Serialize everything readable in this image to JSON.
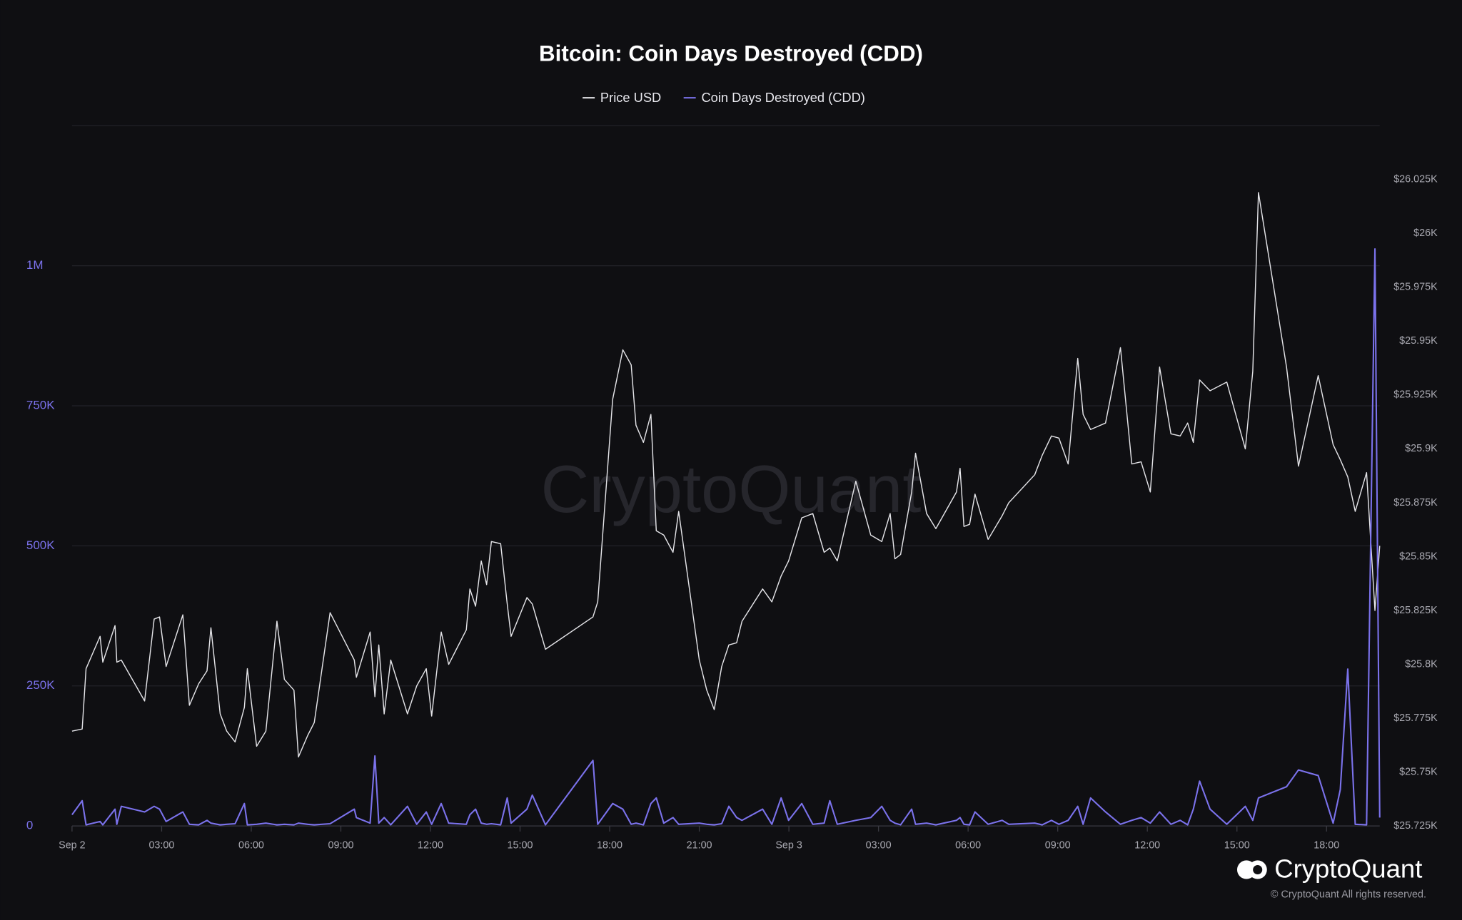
{
  "chart_data": {
    "type": "line",
    "title": "Bitcoin: Coin Days Destroyed (CDD)",
    "watermark": "CryptoQuant",
    "brand": "CryptoQuant",
    "copyright": "© CryptoQuant All rights reserved.",
    "x": [
      0,
      0.34,
      0.47,
      0.94,
      1.03,
      1.44,
      1.5,
      1.65,
      2.43,
      2.75,
      2.93,
      3.15,
      3.71,
      3.93,
      4.24,
      4.52,
      4.65,
      4.96,
      5.18,
      5.46,
      5.77,
      5.87,
      6.18,
      6.49,
      6.86,
      7.11,
      7.43,
      7.58,
      7.89,
      8.11,
      8.64,
      9.45,
      9.52,
      9.98,
      10.14,
      10.27,
      10.45,
      10.67,
      11.23,
      11.54,
      11.86,
      12.04,
      12.36,
      12.61,
      13.2,
      13.32,
      13.51,
      13.7,
      13.88,
      14.04,
      14.35,
      14.57,
      14.7,
      15.23,
      15.41,
      15.85,
      17.44,
      17.6,
      18.1,
      18.44,
      18.72,
      18.88,
      19.13,
      19.38,
      19.56,
      19.81,
      20.12,
      20.31,
      21,
      21.25,
      21.5,
      21.75,
      21.99,
      22.25,
      22.43,
      23.12,
      23.43,
      23.74,
      23.99,
      24.43,
      24.8,
      25.18,
      25.37,
      25.62,
      26.24,
      26.74,
      27.11,
      27.39,
      27.55,
      27.74,
      28.11,
      28.24,
      28.61,
      28.92,
      29.61,
      29.73,
      29.86,
      30.05,
      30.23,
      30.67,
      31.14,
      31.36,
      32.23,
      32.48,
      32.79,
      33.04,
      33.35,
      33.67,
      33.85,
      34.1,
      34.6,
      35.1,
      35.48,
      35.79,
      36.1,
      36.41,
      36.79,
      37.1,
      37.35,
      37.54,
      37.75,
      38.1,
      38.66,
      39.28,
      39.53,
      39.72,
      40.66,
      41.06,
      41.72,
      42.22,
      42.46,
      42.71,
      42.96,
      43.34,
      43.62,
      43.78
    ],
    "series": [
      {
        "name": "Price USD",
        "color": "#e4e4e8",
        "axis": "y2",
        "values": [
          25769,
          25770,
          25798,
          25813,
          25801,
          25818,
          25801,
          25802,
          25783,
          25821,
          25822,
          25799,
          25823,
          25781,
          25791,
          25797,
          25817,
          25777,
          25769,
          25764,
          25780,
          25798,
          25762,
          25769,
          25820,
          25793,
          25788,
          25757,
          25767,
          25773,
          25824,
          25802,
          25794,
          25815,
          25785,
          25809,
          25777,
          25802,
          25777,
          25790,
          25798,
          25776,
          25815,
          25800,
          25816,
          25835,
          25827,
          25848,
          25837,
          25857,
          25856,
          25828,
          25813,
          25831,
          25828,
          25807,
          25822,
          25829,
          25923,
          25946,
          25939,
          25911,
          25903,
          25916,
          25862,
          25860,
          25852,
          25871,
          25802,
          25788,
          25779,
          25799,
          25809,
          25810,
          25820,
          25835,
          25829,
          25841,
          25848,
          25868,
          25870,
          25852,
          25854,
          25848,
          25885,
          25860,
          25857,
          25870,
          25849,
          25851,
          25880,
          25898,
          25870,
          25863,
          25880,
          25891,
          25864,
          25865,
          25879,
          25858,
          25869,
          25875,
          25888,
          25897,
          25906,
          25905,
          25893,
          25942,
          25916,
          25909,
          25912,
          25947,
          25893,
          25894,
          25880,
          25938,
          25907,
          25906,
          25912,
          25903,
          25932,
          25927,
          25931,
          25900,
          25936,
          26019,
          25938,
          25892,
          25934,
          25902,
          25895,
          25887,
          25871,
          25889,
          25825,
          25855
        ]
      },
      {
        "name": "Coin Days Destroyed (CDD)",
        "color": "#7b72ec",
        "values": [
          20000,
          45000,
          2000,
          8000,
          2000,
          30000,
          3000,
          35000,
          25000,
          35000,
          30000,
          8000,
          25000,
          3000,
          2000,
          10000,
          5000,
          2000,
          3000,
          4000,
          40000,
          2000,
          3000,
          5000,
          2000,
          3000,
          2000,
          5000,
          3000,
          2000,
          4000,
          30000,
          15000,
          5000,
          125000,
          5000,
          15000,
          2000,
          35000,
          3000,
          25000,
          3000,
          40000,
          5000,
          3000,
          20000,
          30000,
          5000,
          3000,
          4000,
          2000,
          50000,
          5000,
          30000,
          55000,
          2000,
          117000,
          3000,
          40000,
          30000,
          3000,
          5000,
          2000,
          40000,
          50000,
          5000,
          15000,
          3000,
          5000,
          3000,
          2000,
          4000,
          35000,
          15000,
          10000,
          30000,
          3000,
          50000,
          10000,
          40000,
          3000,
          5000,
          45000,
          3000,
          10000,
          15000,
          35000,
          10000,
          5000,
          2000,
          30000,
          3000,
          5000,
          2000,
          10000,
          15000,
          3000,
          2000,
          25000,
          3000,
          10000,
          3000,
          5000,
          2000,
          10000,
          3000,
          10000,
          35000,
          3000,
          50000,
          25000,
          3000,
          10000,
          15000,
          5000,
          25000,
          3000,
          10000,
          2000,
          30000,
          80000,
          30000,
          3000,
          35000,
          10000,
          50000,
          70000,
          100000,
          90000,
          5000,
          65000,
          280000,
          3000,
          2000,
          1030000,
          15000
        ]
      }
    ],
    "xlim": [
      0,
      43.78
    ],
    "xticks": [
      {
        "value": 0,
        "label": "Sep 2"
      },
      {
        "value": 3,
        "label": "03:00"
      },
      {
        "value": 6,
        "label": "06:00"
      },
      {
        "value": 9,
        "label": "09:00"
      },
      {
        "value": 12,
        "label": "12:00"
      },
      {
        "value": 15,
        "label": "15:00"
      },
      {
        "value": 18,
        "label": "18:00"
      },
      {
        "value": 21,
        "label": "21:00"
      },
      {
        "value": 24,
        "label": "Sep 3"
      },
      {
        "value": 27,
        "label": "03:00"
      },
      {
        "value": 30,
        "label": "06:00"
      },
      {
        "value": 33,
        "label": "09:00"
      },
      {
        "value": 36,
        "label": "12:00"
      },
      {
        "value": 39,
        "label": "15:00"
      },
      {
        "value": 42,
        "label": "18:00"
      }
    ],
    "ylim": [
      0,
      1250000
    ],
    "yticks": [
      0,
      {
        "value": 250000,
        "label": "250K"
      },
      {
        "value": 500000,
        "label": "500K"
      },
      {
        "value": 750000,
        "label": "750K"
      },
      {
        "value": 1000000,
        "label": "1M"
      }
    ],
    "y2lim": [
      25725,
      26050
    ],
    "y2ticks": [
      {
        "value": 25725,
        "label": "$25.725K"
      },
      {
        "value": 25750,
        "label": "$25.75K"
      },
      {
        "value": 25775,
        "label": "$25.775K"
      },
      {
        "value": 25800,
        "label": "$25.8K"
      },
      {
        "value": 25825,
        "label": "$25.825K"
      },
      {
        "value": 25850,
        "label": "$25.85K"
      },
      {
        "value": 25875,
        "label": "$25.875K"
      },
      {
        "value": 25900,
        "label": "$25.9K"
      },
      {
        "value": 25925,
        "label": "$25.925K"
      },
      {
        "value": 25950,
        "label": "$25.95K"
      },
      {
        "value": 25975,
        "label": "$25.975K"
      },
      {
        "value": 26000,
        "label": "$26K"
      },
      {
        "value": 26025,
        "label": "$26.025K"
      }
    ],
    "grid": true,
    "legend": "top"
  }
}
